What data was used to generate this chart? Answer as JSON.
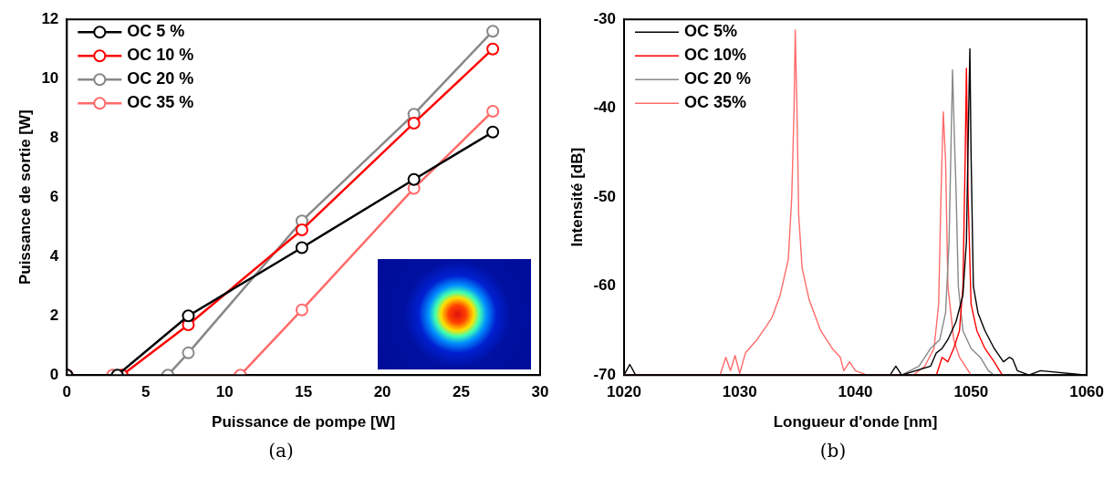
{
  "chart_data": [
    {
      "type": "line",
      "xlabel": "Puissance de pompe [W]",
      "ylabel": "Puissance de sortie [W]",
      "xlim": [
        0,
        30
      ],
      "xticks": [
        0,
        5,
        10,
        15,
        20,
        25,
        30
      ],
      "ylim": [
        0,
        12
      ],
      "yticks": [
        0,
        2,
        4,
        6,
        8,
        10,
        12
      ],
      "grid": false,
      "legend": "top left",
      "marker": "circle",
      "line_style": "solid",
      "annotations": [
        "(a)"
      ],
      "series": [
        {
          "name": "OC 5 %",
          "color": "#000000",
          "x": [
            0,
            3.2,
            7.7,
            14.9,
            22,
            27
          ],
          "values": [
            0,
            0,
            2.0,
            4.3,
            6.6,
            8.2
          ]
        },
        {
          "name": "OC 10 %",
          "color": "#ff0000",
          "x": [
            0,
            3.5,
            7.7,
            14.9,
            22,
            27
          ],
          "values": [
            0,
            0,
            1.7,
            4.9,
            8.5,
            11.0
          ]
        },
        {
          "name": "OC 20 %",
          "color": "#888888",
          "x": [
            0,
            6.4,
            7.7,
            14.9,
            22,
            27
          ],
          "values": [
            0,
            0,
            0.75,
            5.2,
            8.8,
            11.6
          ]
        },
        {
          "name": "OC 35 %",
          "color": "#ff6b6b",
          "x": [
            0,
            2.9,
            11,
            14.9,
            22,
            27
          ],
          "values": [
            0,
            0,
            0,
            2.2,
            6.3,
            8.9
          ]
        }
      ]
    },
    {
      "type": "line",
      "xlabel": "Longueur d'onde [nm]",
      "ylabel": "Intensité [dB]",
      "xlim": [
        1020,
        1060
      ],
      "xticks": [
        1020,
        1030,
        1040,
        1050,
        1060
      ],
      "ylim": [
        -70,
        -30
      ],
      "yticks": [
        -70,
        -60,
        -50,
        -40,
        -30
      ],
      "grid": false,
      "legend": "top left",
      "marker": "none",
      "line_style": "solid",
      "annotations": [
        "(b)"
      ],
      "series": [
        {
          "name": "OC 5%",
          "color": "#000000",
          "x": [
            1020,
            1020.5,
            1021,
            1043,
            1043.5,
            1044,
            1046.5,
            1047,
            1047.5,
            1048,
            1048.7,
            1049.3,
            1049.6,
            1049.8,
            1049.9,
            1050,
            1050.2,
            1050.6,
            1051.2,
            1052,
            1052.8,
            1053.3,
            1053.6,
            1054,
            1055,
            1056,
            1060
          ],
          "values": [
            -70,
            -68.8,
            -70,
            -70,
            -69,
            -70,
            -69,
            -67.5,
            -67,
            -66,
            -64,
            -61,
            -55,
            -40,
            -33.3,
            -45,
            -60,
            -63,
            -65,
            -67,
            -68.5,
            -68,
            -68.2,
            -69.5,
            -70,
            -69.5,
            -70
          ]
        },
        {
          "name": "OC 10%",
          "color": "#ff0000",
          "x": [
            1020,
            1047,
            1047.5,
            1048,
            1048.5,
            1049,
            1049.3,
            1049.5,
            1049.6,
            1049.75,
            1050,
            1050.5,
            1051.2,
            1052,
            1052.7
          ],
          "values": [
            -70,
            -70,
            -68,
            -68.5,
            -67,
            -65,
            -60,
            -45,
            -35.5,
            -50,
            -62,
            -65,
            -67,
            -68.5,
            -70
          ]
        },
        {
          "name": "OC 20 %",
          "color": "#888888",
          "x": [
            1020,
            1044,
            1045.5,
            1046.5,
            1047.3,
            1047.8,
            1048.1,
            1048.4,
            1048.6,
            1048.7,
            1048.9,
            1049.3,
            1050,
            1050.8,
            1051.5,
            1052,
            1060
          ],
          "values": [
            -70,
            -70,
            -69,
            -67,
            -66,
            -63,
            -55,
            -35.7,
            -45,
            -49,
            -60,
            -65,
            -67,
            -68,
            -69.5,
            -70,
            -70
          ]
        },
        {
          "name": "OC 35%",
          "color": "#ff6b6b",
          "x": [
            1020,
            1028.3,
            1028.8,
            1029.2,
            1029.6,
            1030,
            1030.5,
            1031.5,
            1032.3,
            1032.8,
            1033.5,
            1034.2,
            1034.5,
            1034.7,
            1034.8,
            1034.95,
            1035.1,
            1035.4,
            1036,
            1037,
            1038,
            1038.7,
            1039,
            1039.5,
            1040,
            1041,
            1045,
            1046,
            1046.8,
            1047.2,
            1047.4,
            1047.6,
            1047.8,
            1048,
            1048.5,
            1049,
            1050
          ],
          "values": [
            -70,
            -70,
            -68,
            -69.5,
            -67.8,
            -69.8,
            -67.5,
            -66,
            -64.5,
            -63.5,
            -61,
            -57,
            -50,
            -40,
            -31.2,
            -40,
            -52,
            -58,
            -61.5,
            -65,
            -67,
            -68,
            -69.5,
            -68.5,
            -69.5,
            -70,
            -70,
            -69,
            -67,
            -62,
            -50,
            -40.4,
            -46,
            -60,
            -66,
            -68,
            -70
          ]
        }
      ]
    }
  ]
}
